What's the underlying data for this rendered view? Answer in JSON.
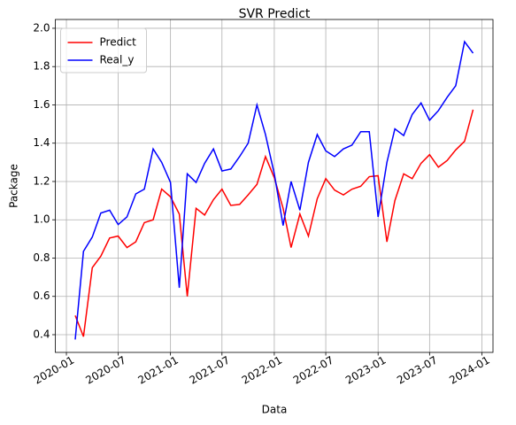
{
  "chart_data": {
    "type": "line",
    "title": "SVR Predict",
    "x_label": "Data",
    "y_label": "Package",
    "x": [
      "2020-02",
      "2020-03",
      "2020-04",
      "2020-05",
      "2020-06",
      "2020-07",
      "2020-08",
      "2020-09",
      "2020-10",
      "2020-11",
      "2020-12",
      "2021-01",
      "2021-02",
      "2021-03",
      "2021-04",
      "2021-05",
      "2021-06",
      "2021-07",
      "2021-08",
      "2021-09",
      "2021-10",
      "2021-11",
      "2021-12",
      "2022-01",
      "2022-02",
      "2022-03",
      "2022-04",
      "2022-05",
      "2022-06",
      "2022-07",
      "2022-08",
      "2022-09",
      "2022-10",
      "2022-11",
      "2022-12",
      "2023-01",
      "2023-02",
      "2023-03",
      "2023-04",
      "2023-05",
      "2023-06",
      "2023-07",
      "2023-08",
      "2023-09",
      "2023-10",
      "2023-11",
      "2023-12"
    ],
    "series": [
      {
        "name": "Predict",
        "color": "#ff0000",
        "values": [
          0.5,
          0.39,
          0.75,
          0.81,
          0.905,
          0.915,
          0.855,
          0.885,
          0.985,
          1.0,
          1.16,
          1.12,
          1.03,
          0.6,
          1.06,
          1.025,
          1.105,
          1.16,
          1.075,
          1.08,
          1.13,
          1.185,
          1.33,
          1.22,
          1.06,
          0.855,
          1.03,
          0.915,
          1.11,
          1.215,
          1.155,
          1.13,
          1.16,
          1.175,
          1.225,
          1.23,
          0.885,
          1.1,
          1.24,
          1.215,
          1.295,
          1.34,
          1.275,
          1.31,
          1.365,
          1.41,
          1.575
        ]
      },
      {
        "name": "Real_y",
        "color": "#0000ff",
        "values": [
          0.375,
          0.835,
          0.91,
          1.035,
          1.05,
          0.975,
          1.015,
          1.135,
          1.16,
          1.37,
          1.3,
          1.195,
          0.645,
          1.24,
          1.195,
          1.295,
          1.37,
          1.255,
          1.265,
          1.33,
          1.4,
          1.6,
          1.445,
          1.24,
          0.97,
          1.2,
          1.05,
          1.3,
          1.445,
          1.36,
          1.33,
          1.37,
          1.39,
          1.46,
          1.46,
          1.015,
          1.3,
          1.475,
          1.44,
          1.55,
          1.61,
          1.52,
          1.57,
          1.64,
          1.7,
          1.93,
          1.87
        ]
      }
    ],
    "xlim": [
      "2019-11-23",
      "2024-02-09"
    ],
    "xticks": [
      "2020-01",
      "2020-07",
      "2021-01",
      "2021-07",
      "2022-01",
      "2022-07",
      "2023-01",
      "2023-07",
      "2024-01"
    ],
    "ylim": [
      0.3075,
      2.046
    ],
    "yticks": [
      0.4,
      0.6,
      0.8,
      {
        "value": 1.0,
        "label": "1.0"
      },
      1.2,
      1.4,
      1.6,
      1.8,
      {
        "value": 2.0,
        "label": "2.0"
      }
    ],
    "grid": true,
    "legend": "upper left"
  }
}
